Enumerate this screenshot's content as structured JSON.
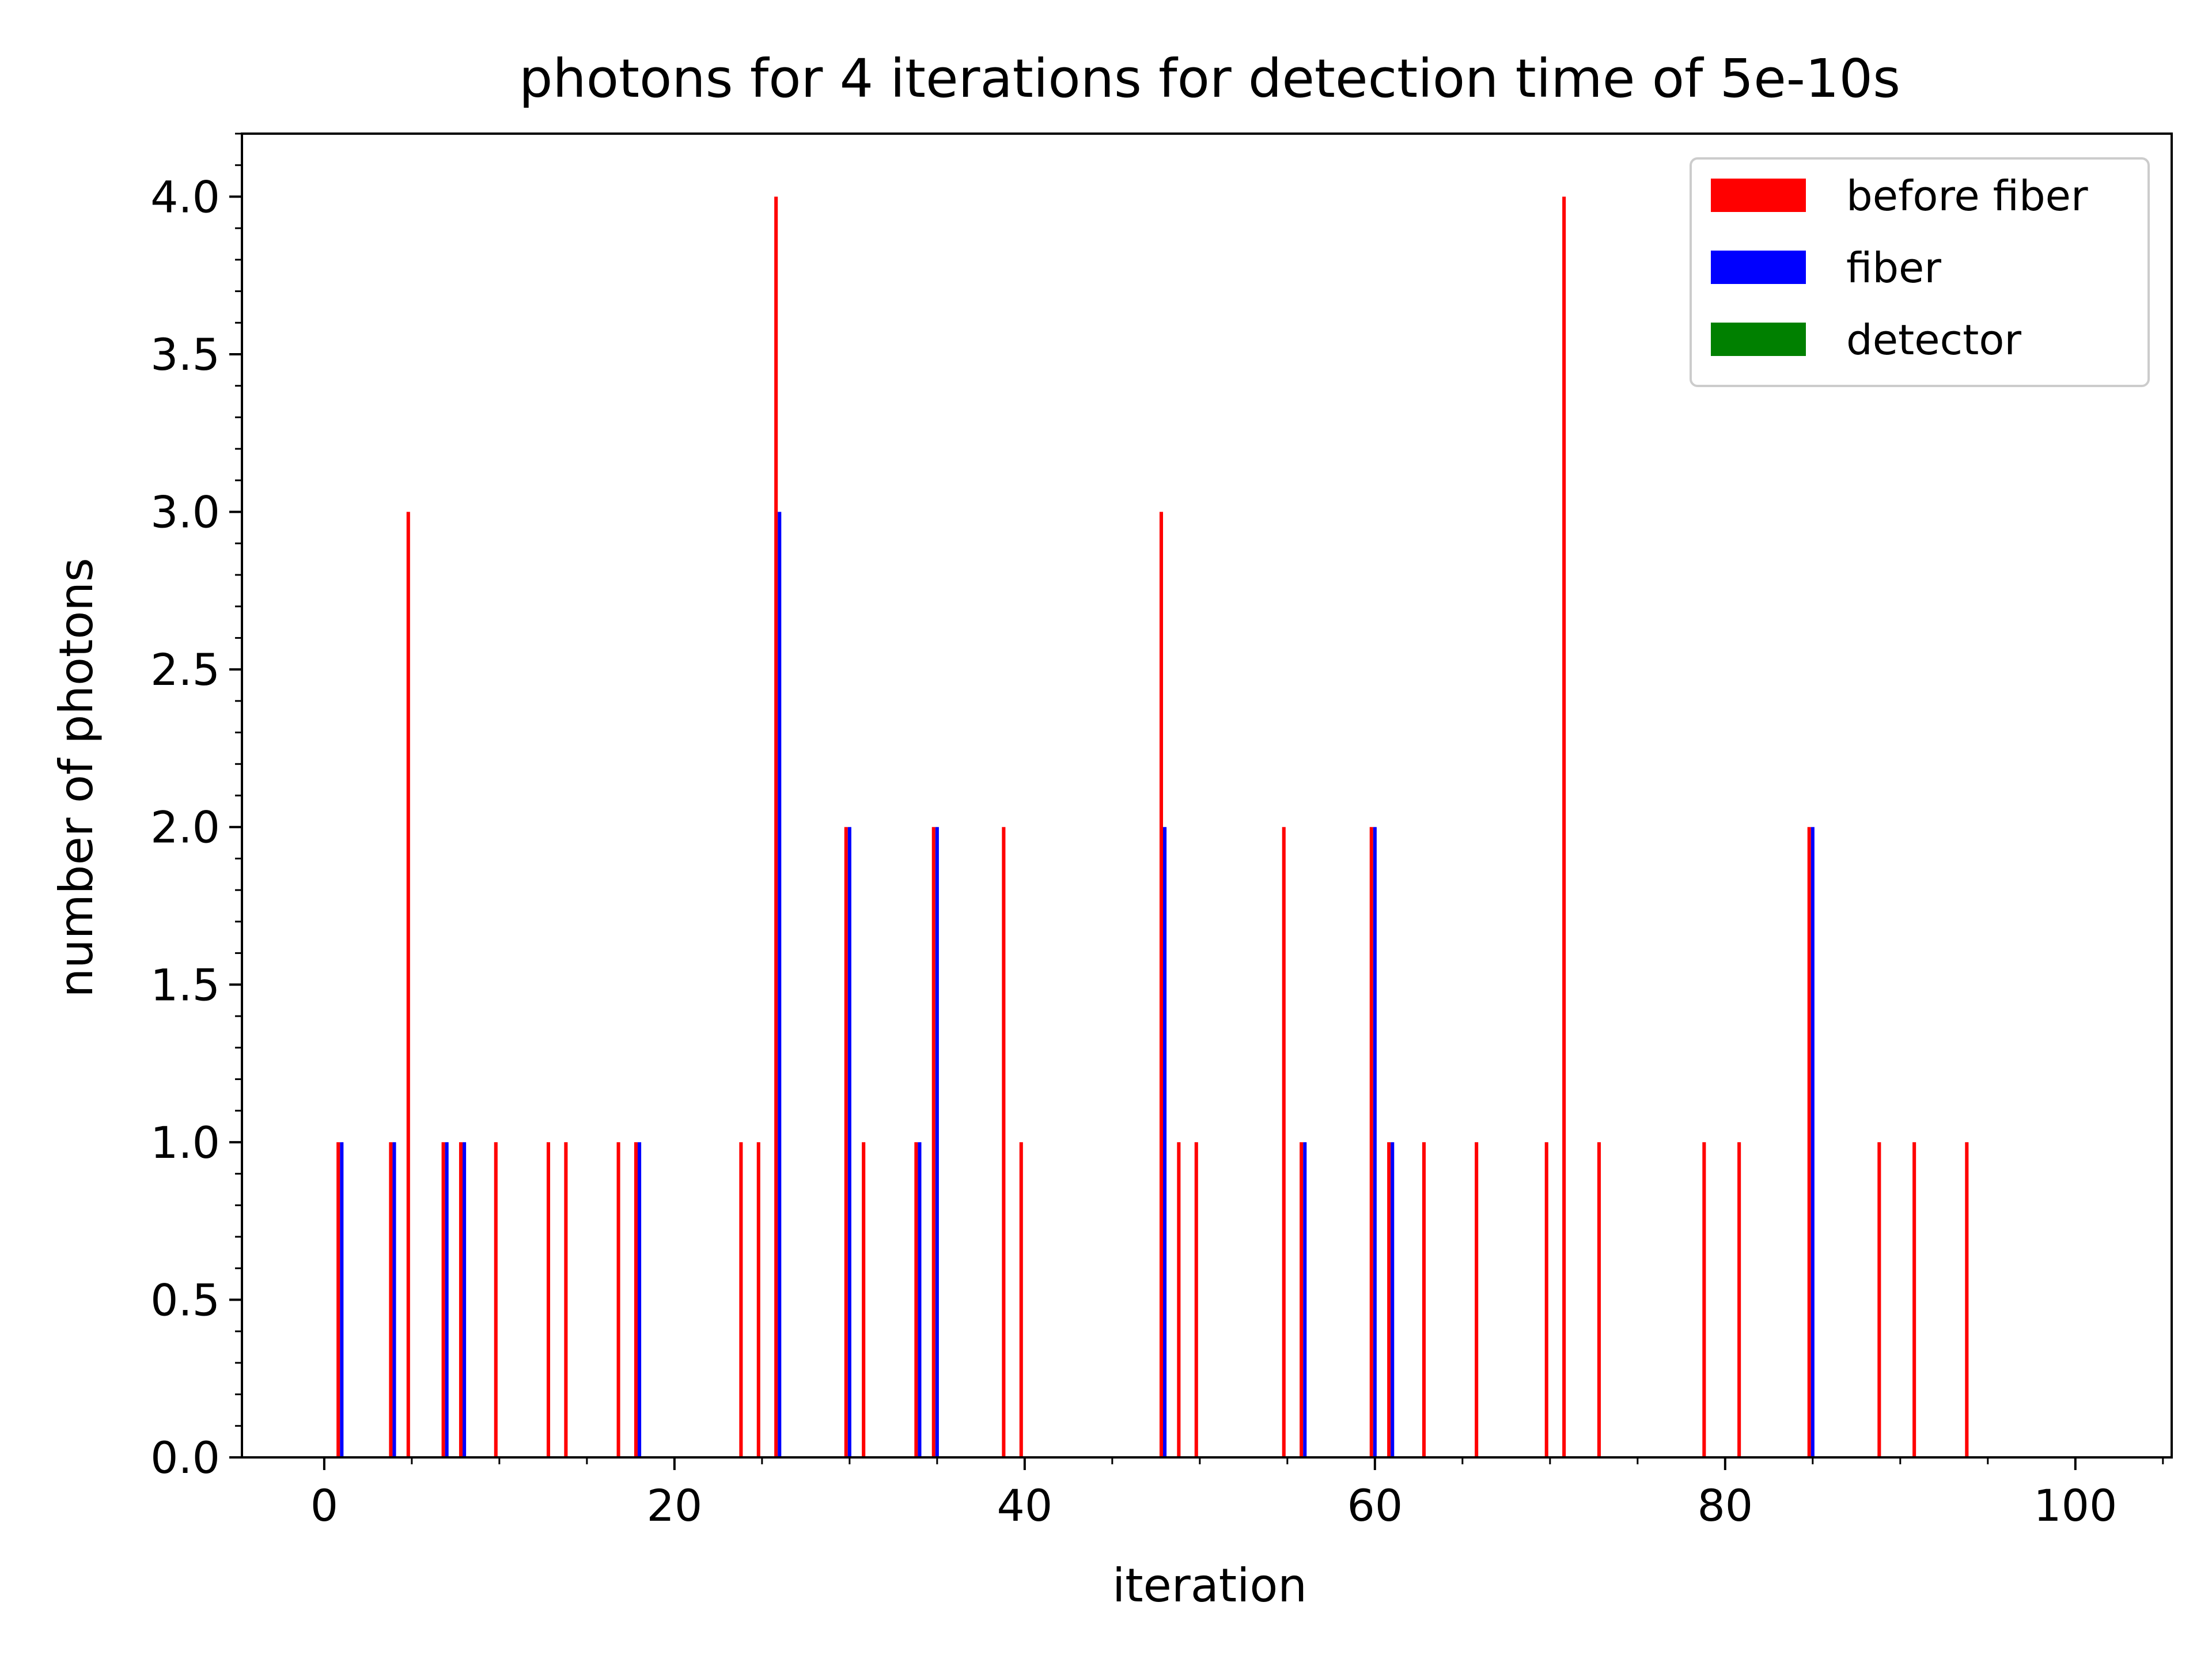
{
  "chart_data": {
    "type": "bar",
    "title": "photons for 4 iterations for detection time of 5e-10s",
    "xlabel": "iteration",
    "ylabel": "number of photons",
    "xlim": [
      -4.7,
      105.5
    ],
    "ylim": [
      0,
      4.2
    ],
    "xticks": [
      0,
      20,
      40,
      60,
      80,
      100
    ],
    "xtick_labels": [
      "0",
      "20",
      "40",
      "60",
      "80",
      "100"
    ],
    "yticks": [
      0.0,
      0.5,
      1.0,
      1.5,
      2.0,
      2.5,
      3.0,
      3.5,
      4.0
    ],
    "ytick_labels": [
      "0.0",
      "0.5",
      "1.0",
      "1.5",
      "2.0",
      "2.5",
      "3.0",
      "3.5",
      "4.0"
    ],
    "x_minor_step": 5,
    "y_minor_step": 0.1,
    "grid": false,
    "legend_position": "top-right",
    "bar_width": 0.2,
    "series": [
      {
        "name": "before fiber",
        "color": "#ff0000",
        "offset": -0.2,
        "x": [
          1,
          4,
          5,
          7,
          8,
          10,
          13,
          14,
          17,
          18,
          24,
          25,
          26,
          30,
          31,
          34,
          35,
          39,
          40,
          48,
          49,
          50,
          55,
          56,
          60,
          61,
          63,
          66,
          70,
          71,
          73,
          79,
          81,
          85,
          89,
          91,
          94
        ],
        "values": [
          1,
          1,
          3,
          1,
          1,
          1,
          1,
          1,
          1,
          1,
          1,
          1,
          4,
          2,
          1,
          1,
          2,
          2,
          1,
          3,
          1,
          1,
          2,
          1,
          2,
          1,
          1,
          1,
          1,
          4,
          1,
          1,
          1,
          2,
          1,
          1,
          1
        ]
      },
      {
        "name": "fiber",
        "color": "#0000ff",
        "offset": 0.0,
        "x": [
          1,
          4,
          7,
          8,
          18,
          26,
          30,
          34,
          35,
          48,
          56,
          60,
          61,
          85
        ],
        "values": [
          1,
          1,
          1,
          1,
          1,
          3,
          2,
          1,
          2,
          2,
          1,
          2,
          1,
          2
        ]
      },
      {
        "name": "detector",
        "color": "#008000",
        "offset": 0.2,
        "x": [],
        "values": []
      }
    ]
  }
}
